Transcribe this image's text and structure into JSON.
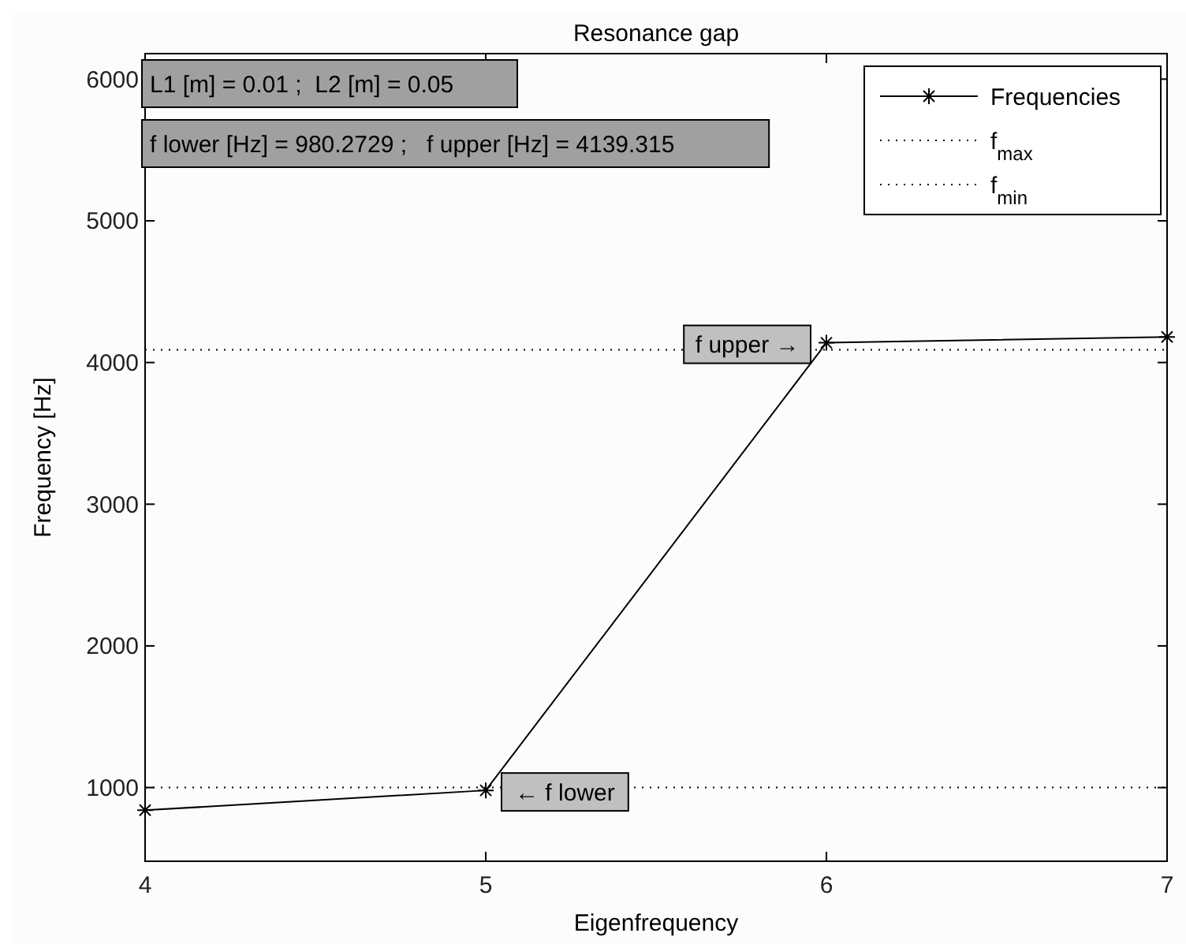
{
  "chart_data": {
    "type": "line",
    "title": "Resonance gap",
    "xlabel": "Eigenfrequency",
    "ylabel": "Frequency [Hz]",
    "x": [
      4,
      5,
      6,
      7
    ],
    "series": [
      {
        "name": "Frequencies",
        "color": "#000000",
        "values": [
          840,
          980.2729,
          4139.315,
          4180
        ]
      }
    ],
    "marker": "cross",
    "line_style": "solid",
    "xlim": [
      4,
      7
    ],
    "xticks": [
      4,
      5,
      6,
      7
    ],
    "ylim": [
      480,
      6180
    ],
    "yticks": [
      1000,
      2000,
      3000,
      4000,
      5000,
      6000
    ],
    "ref_lines": [
      {
        "axis": "y",
        "value": 4090,
        "label": "f$_{max}$",
        "color": "#000000",
        "line_style": "dotted"
      },
      {
        "axis": "y",
        "value": 1000,
        "label": "f$_{min}$",
        "color": "#000000",
        "line_style": "dotted"
      }
    ],
    "annotations": [
      "L1 [m] = 0.01 ;  L2 [m] = 0.05",
      "f lower [Hz] = 980.2729 ;   f upper [Hz] = 4139.315",
      {
        "text": "f upper →",
        "x": 6,
        "y": 4139.315
      },
      {
        "text": "← f lower",
        "x": 5,
        "y": 980.2729
      }
    ],
    "legend": "top right",
    "grid": false
  }
}
